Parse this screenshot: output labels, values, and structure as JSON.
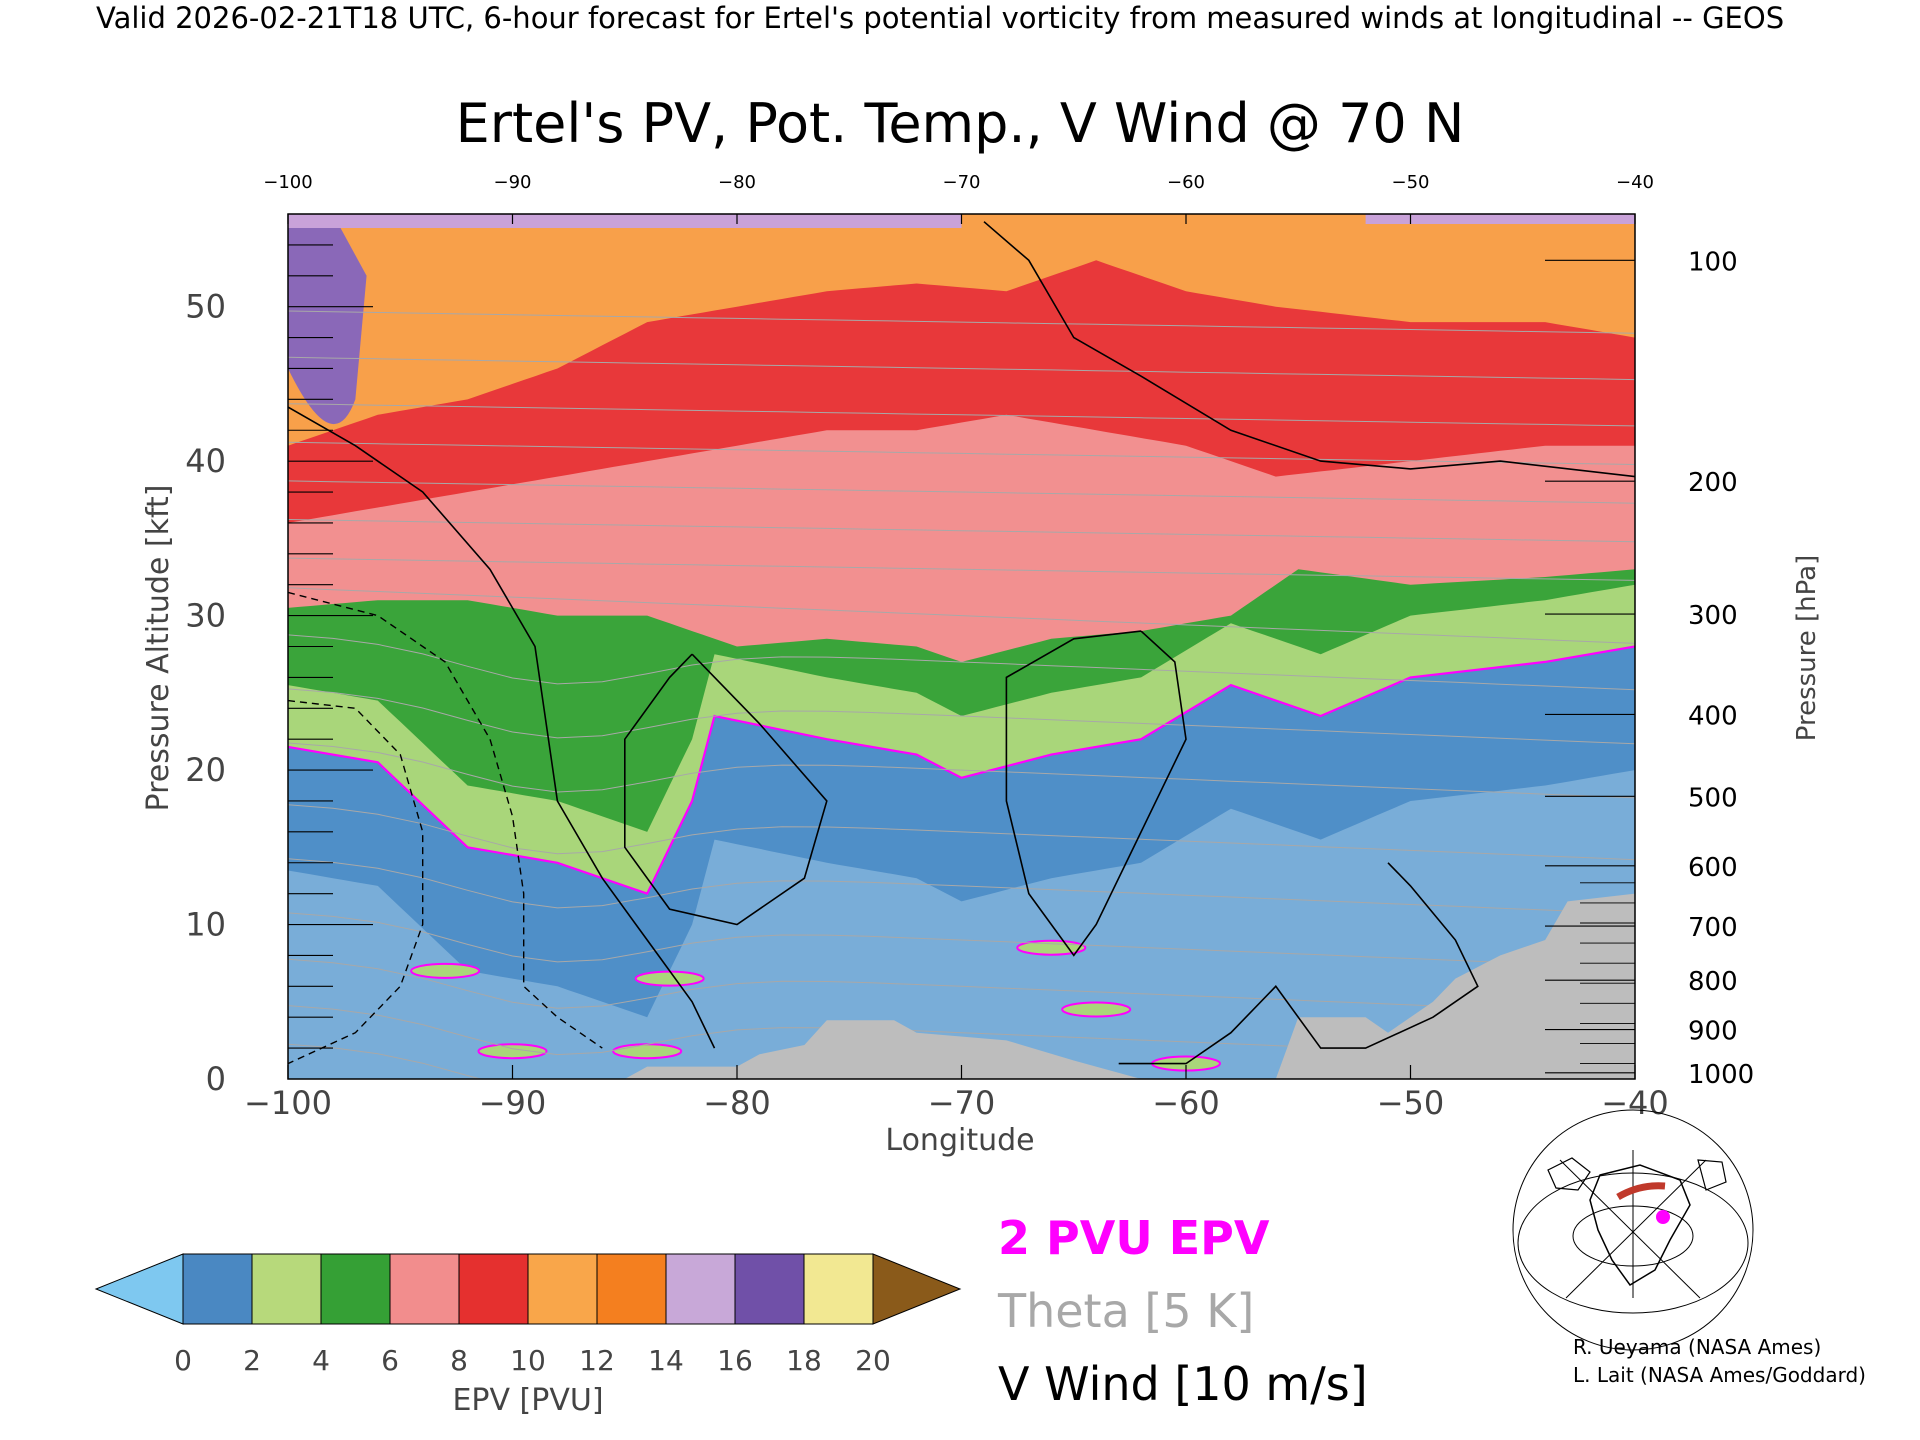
{
  "header": {
    "valid_line": "Valid 2026-02-21T18 UTC, 6-hour forecast for Ertel's potential vorticity from measured winds at longitudinal -- GEOS"
  },
  "chart_data": {
    "type": "heatmap",
    "title": "Ertel's PV, Pot. Temp., V Wind @ 70 N",
    "xlabel": "Longitude",
    "ylabel_left": "Pressure Altitude [kft]",
    "ylabel_right": "Pressure [hPa]",
    "xlim": [
      -100,
      -40
    ],
    "ylim": [
      0,
      56
    ],
    "x_ticks": [
      -100,
      -90,
      -80,
      -70,
      -60,
      -50,
      -40
    ],
    "x_tick_labels": [
      "−100",
      "−90",
      "−80",
      "−70",
      "−60",
      "−50",
      "−40"
    ],
    "top_tick_labels": [
      "−100",
      "−90",
      "−80",
      "−70",
      "−60",
      "−50",
      "−40"
    ],
    "y_ticks": [
      0,
      10,
      20,
      30,
      40,
      50
    ],
    "y_tick_labels": [
      "0",
      "10",
      "20",
      "30",
      "40",
      "50"
    ],
    "pressure_ticks": [
      {
        "label": "100",
        "kft": 53.0
      },
      {
        "label": "200",
        "kft": 38.7
      },
      {
        "label": "300",
        "kft": 30.1
      },
      {
        "label": "400",
        "kft": 23.6
      },
      {
        "label": "500",
        "kft": 18.3
      },
      {
        "label": "600",
        "kft": 13.8
      },
      {
        "label": "700",
        "kft": 9.9
      },
      {
        "label": "800",
        "kft": 6.4
      },
      {
        "label": "900",
        "kft": 3.2
      },
      {
        "label": "1000",
        "kft": 0.4
      }
    ],
    "pv_layers_kft": [
      {
        "pvu": 1.0,
        "profile": [
          [
            -100,
            0
          ],
          [
            -40,
            0
          ]
        ],
        "top_profile": [
          [
            -100,
            21.5
          ],
          [
            -96,
            20.5
          ],
          [
            -92,
            15
          ],
          [
            -88,
            14
          ],
          [
            -84,
            12
          ],
          [
            -82,
            18
          ],
          [
            -81,
            23.5
          ],
          [
            -76,
            22
          ],
          [
            -72,
            21
          ],
          [
            -70,
            19.5
          ],
          [
            -66,
            21
          ],
          [
            -62,
            22
          ],
          [
            -58,
            25.5
          ],
          [
            -54,
            23.5
          ],
          [
            -50,
            26
          ],
          [
            -44,
            27
          ],
          [
            -40,
            28
          ]
        ]
      },
      {
        "band": "green",
        "pvu_range": [
          4,
          6
        ],
        "top_profile": [
          [
            -100,
            30.5
          ],
          [
            -96,
            31
          ],
          [
            -92,
            31
          ],
          [
            -88,
            30
          ],
          [
            -84,
            30
          ],
          [
            -80,
            28
          ],
          [
            -76,
            28.5
          ],
          [
            -72,
            28
          ],
          [
            -70,
            27
          ],
          [
            -66,
            28.5
          ],
          [
            -62,
            29
          ],
          [
            -58,
            30
          ],
          [
            -55,
            33
          ],
          [
            -50,
            32
          ],
          [
            -44,
            32.5
          ],
          [
            -40,
            33
          ]
        ]
      },
      {
        "band": "pink",
        "pvu_range": [
          6,
          8
        ],
        "top_profile": [
          [
            -100,
            36
          ],
          [
            -96,
            37
          ],
          [
            -92,
            38
          ],
          [
            -88,
            39
          ],
          [
            -84,
            40
          ],
          [
            -80,
            41
          ],
          [
            -76,
            42
          ],
          [
            -72,
            42
          ],
          [
            -68,
            43
          ],
          [
            -64,
            42
          ],
          [
            -60,
            41
          ],
          [
            -56,
            39
          ],
          [
            -50,
            40
          ],
          [
            -44,
            41
          ],
          [
            -40,
            41
          ]
        ]
      },
      {
        "band": "red",
        "pvu_range": [
          8,
          10
        ],
        "top_profile": [
          [
            -100,
            41
          ],
          [
            -96,
            43
          ],
          [
            -92,
            44
          ],
          [
            -88,
            46
          ],
          [
            -84,
            49
          ],
          [
            -80,
            50
          ],
          [
            -76,
            51
          ],
          [
            -72,
            51.5
          ],
          [
            -68,
            51
          ],
          [
            -64,
            53
          ],
          [
            -60,
            51
          ],
          [
            -56,
            50
          ],
          [
            -50,
            49
          ],
          [
            -44,
            49
          ],
          [
            -40,
            48
          ]
        ]
      }
    ],
    "v_wind_contours": [
      {
        "value": 0,
        "label": "0",
        "points": [
          [
            -100,
            43.5
          ],
          [
            -97,
            41
          ],
          [
            -94,
            38
          ],
          [
            -91,
            33
          ],
          [
            -89,
            28
          ],
          [
            -88,
            18
          ],
          [
            -86,
            13
          ],
          [
            -84,
            9
          ],
          [
            -82,
            5
          ],
          [
            -81,
            2
          ]
        ]
      },
      {
        "value": 0,
        "label": "0",
        "points": [
          [
            -69,
            55.5
          ],
          [
            -67,
            53
          ],
          [
            -65,
            48
          ],
          [
            -62,
            45.5
          ],
          [
            -58,
            42
          ],
          [
            -54,
            40
          ],
          [
            -50,
            39.5
          ],
          [
            -46,
            40
          ],
          [
            -40,
            39
          ]
        ]
      },
      {
        "value": 10,
        "label": "10",
        "points": [
          [
            -82,
            27.5
          ],
          [
            -79,
            23
          ],
          [
            -76,
            18
          ],
          [
            -77,
            13
          ],
          [
            -80,
            10
          ],
          [
            -83,
            11
          ],
          [
            -85,
            15
          ],
          [
            -85,
            22
          ],
          [
            -83,
            26
          ],
          [
            -82,
            27.5
          ]
        ]
      },
      {
        "value": 10,
        "label": "10",
        "points": [
          [
            -62,
            29
          ],
          [
            -60.5,
            27
          ],
          [
            -60,
            22
          ],
          [
            -62,
            16
          ],
          [
            -64,
            10
          ],
          [
            -65,
            8
          ],
          [
            -67,
            12
          ],
          [
            -68,
            18
          ],
          [
            -68,
            26
          ],
          [
            -65,
            28.5
          ],
          [
            -62,
            29
          ]
        ]
      },
      {
        "value": 0,
        "label": "0",
        "points": [
          [
            -51,
            14
          ],
          [
            -50,
            12.5
          ],
          [
            -48,
            9
          ],
          [
            -47,
            6
          ],
          [
            -49,
            4
          ],
          [
            -52,
            2
          ],
          [
            -54,
            2
          ],
          [
            -56,
            6
          ],
          [
            -58,
            3
          ],
          [
            -60,
            1
          ],
          [
            -63,
            1
          ]
        ]
      }
    ],
    "v_wind_negative_contours": [
      {
        "value": -10,
        "label": "-10",
        "points": [
          [
            -100,
            31.5
          ],
          [
            -96,
            30
          ],
          [
            -93,
            27
          ],
          [
            -91,
            22
          ],
          [
            -90,
            17
          ],
          [
            -89.5,
            12
          ],
          [
            -89.5,
            6
          ],
          [
            -88,
            4
          ],
          [
            -86,
            2
          ]
        ]
      },
      {
        "value": -10,
        "label": "-10",
        "points": [
          [
            -100,
            24.5
          ],
          [
            -97,
            24
          ],
          [
            -95,
            21
          ],
          [
            -94,
            16
          ],
          [
            -94,
            10
          ],
          [
            -95,
            6
          ],
          [
            -97,
            3
          ],
          [
            -100,
            1
          ]
        ]
      }
    ],
    "theta_contours_K": [
      260,
      270,
      280,
      290,
      300,
      310,
      320,
      330,
      340,
      350,
      360,
      370,
      380,
      390,
      400,
      410,
      420
    ],
    "terrain_kft": [
      [
        -85,
        0
      ],
      [
        -84,
        0.8
      ],
      [
        -80,
        0.8
      ],
      [
        -79,
        1.6
      ],
      [
        -77,
        2.2
      ],
      [
        -76,
        3.8
      ],
      [
        -73,
        3.8
      ],
      [
        -72,
        3
      ],
      [
        -68,
        2.5
      ],
      [
        -65,
        1.2
      ],
      [
        -62,
        0
      ],
      [
        -56,
        0
      ],
      [
        -55,
        4
      ],
      [
        -52,
        4
      ],
      [
        -51,
        3
      ],
      [
        -49,
        5
      ],
      [
        -48,
        6.5
      ],
      [
        -46,
        8
      ],
      [
        -44,
        9
      ],
      [
        -43,
        11.5
      ],
      [
        -40,
        12
      ],
      [
        -40,
        0
      ]
    ],
    "colorbar": {
      "label": "EPV [PVU]",
      "ticks": [
        "0",
        "2",
        "4",
        "6",
        "8",
        "10",
        "12",
        "14",
        "16",
        "18",
        "20"
      ],
      "colors": [
        "#4a88c2",
        "#b7d97b",
        "#35a035",
        "#f28d8d",
        "#e5302f",
        "#f9a64a",
        "#f47f1f",
        "#c8a8d8",
        "#7050a8",
        "#f2e892"
      ],
      "under_color": "#7ec8f0",
      "over_color": "#8a5a1a"
    }
  },
  "legend": {
    "pvu_line": "2 PVU EPV",
    "theta": "Theta [5 K]",
    "v_wind": "V Wind [10 m/s]",
    "pvu_color": "#ff00ff",
    "theta_color": "#a8a8a8"
  },
  "credits": {
    "line1": "R. Ueyama (NASA Ames)",
    "line2": "L. Lait (NASA Ames/Goddard)"
  }
}
